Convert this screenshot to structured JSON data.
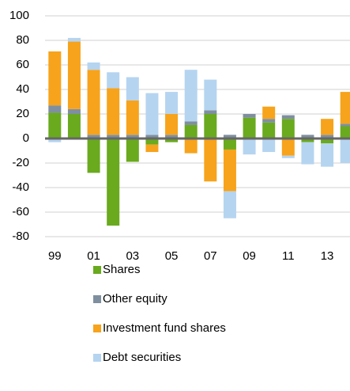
{
  "chart_data": {
    "type": "bar",
    "stacked": true,
    "categories": [
      "99",
      null,
      "01",
      null,
      "03",
      null,
      "05",
      null,
      "07",
      null,
      "09",
      null,
      "11",
      null,
      "13",
      null
    ],
    "series": [
      {
        "name": "Shares",
        "color": "#6aaa1e",
        "values": [
          21,
          20,
          -28,
          -71,
          -19,
          -5,
          -3,
          11,
          20,
          -9,
          17,
          13,
          16,
          -3,
          -4,
          10
        ]
      },
      {
        "name": "Other equity",
        "color": "#7f8fa0",
        "values": [
          6,
          4,
          3,
          3,
          3,
          3,
          3,
          3,
          3,
          3,
          3,
          3,
          3,
          3,
          3,
          2
        ]
      },
      {
        "name": "Investment fund shares",
        "color": "#f7a31b",
        "values": [
          44,
          55,
          53,
          38,
          28,
          -6,
          17,
          -12,
          -35,
          -34,
          0,
          10,
          -14,
          0,
          13,
          26
        ]
      },
      {
        "name": "Debt securities",
        "color": "#b5d4f0",
        "values": [
          -3,
          3,
          6,
          13,
          19,
          34,
          18,
          42,
          25,
          -22,
          -13,
          -11,
          -2,
          -18,
          -19,
          -20
        ]
      }
    ],
    "ylim": [
      -80,
      100
    ],
    "yticks": [
      -80,
      -60,
      -40,
      -20,
      0,
      20,
      40,
      60,
      80,
      100
    ],
    "grid": true,
    "legend": "bottom"
  }
}
